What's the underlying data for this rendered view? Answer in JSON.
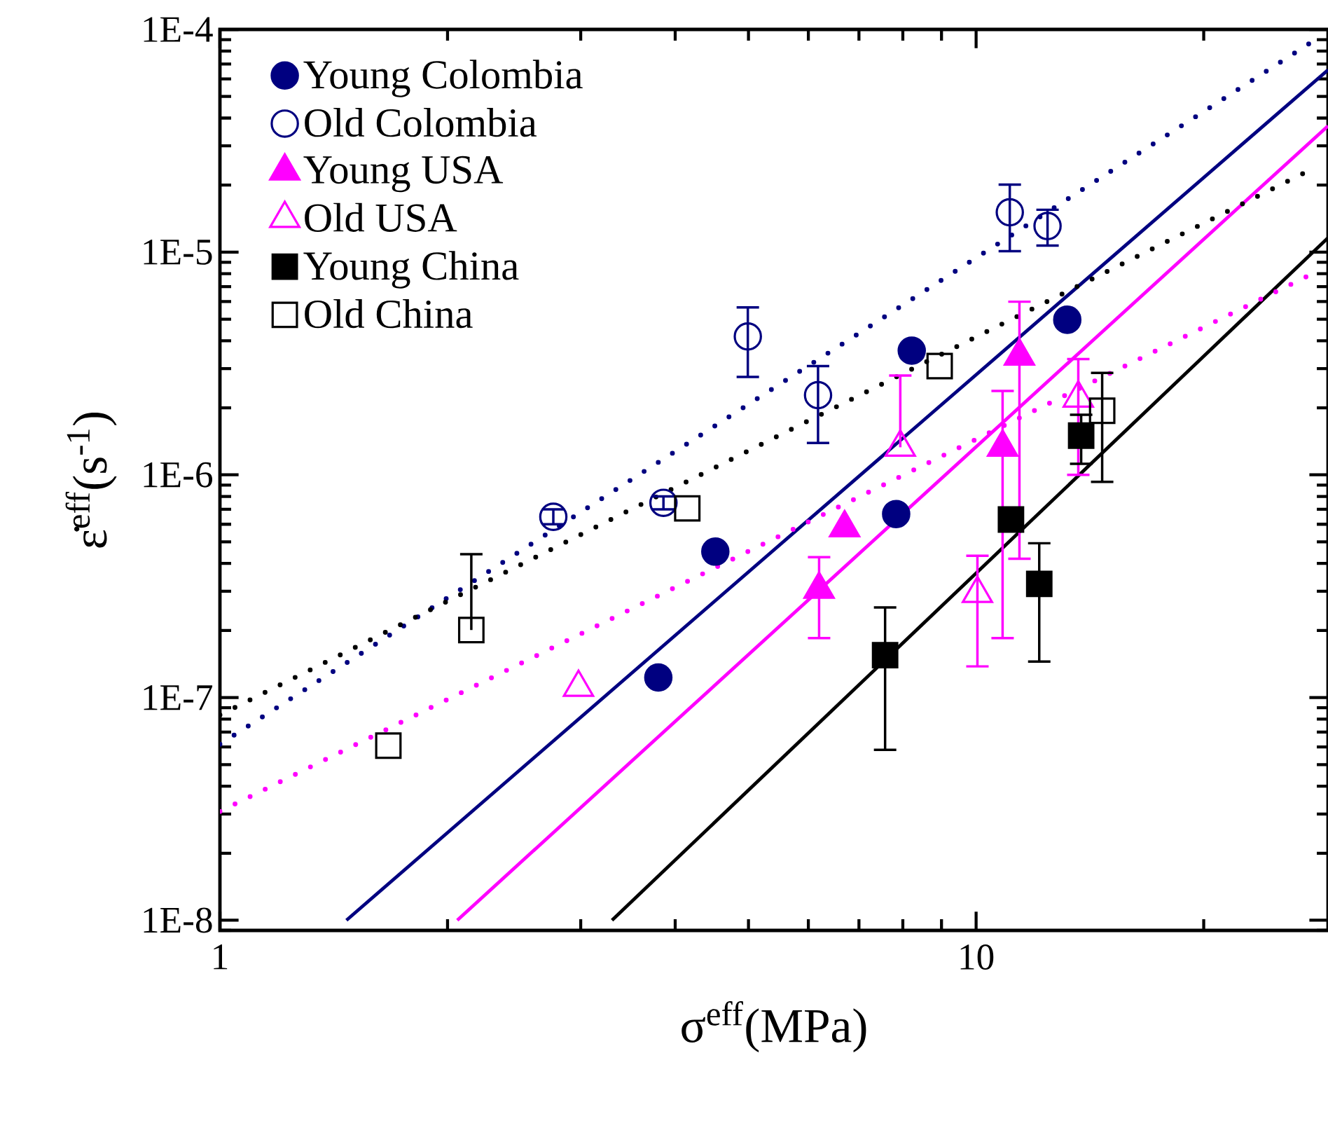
{
  "chart_data": {
    "type": "scatter",
    "xlabel": "σ$^{eff}$(MPa)",
    "ylabel": "ε̇$^{eff}$(s$^{-1}$)",
    "log": "xy",
    "legend": "top left",
    "xlim": [
      1,
      29.2
    ],
    "ylim": [
      9e-09,
      0.0001
    ],
    "xticks": [
      1,
      10
    ],
    "yticks": [
      {
        "value": 1e-08,
        "label": "1E-8"
      },
      {
        "value": 1e-07,
        "label": "1E-7"
      },
      {
        "value": 1e-06,
        "label": "1E-6"
      },
      {
        "value": 1e-05,
        "label": "1E-5"
      },
      {
        "value": 0.0001,
        "label": "1E-4"
      }
    ],
    "series": [
      {
        "name": "Young Colombia",
        "color": "#000080",
        "marker": "circle",
        "x": [
          3.8,
          4.52,
          7.84,
          8.22,
          13.2
        ],
        "values": [
          1.23e-07,
          4.52e-07,
          6.67e-07,
          3.61e-06,
          4.97e-06
        ]
      },
      {
        "name": "Old Colombia",
        "color": "#000080",
        "marker": "circle-open",
        "x": [
          2.76,
          3.86,
          4.99,
          6.18,
          11.08,
          12.43
        ],
        "values": [
          6.48e-07,
          7.49e-07,
          4.18e-06,
          2.28e-06,
          1.51e-05,
          1.31e-05
        ],
        "errors": [
          [
            6e-07,
            7e-07
          ],
          [
            7e-07,
            8e-07
          ],
          [
            2.75e-06,
            5.65e-06
          ],
          [
            1.39e-06,
            3.08e-06
          ],
          [
            1.01e-05,
            2.01e-05
          ],
          [
            1.07e-05,
            1.55e-05
          ]
        ]
      },
      {
        "name": "Young USA",
        "color": "#ff00ff",
        "marker": "triangle",
        "x": [
          6.7,
          6.2,
          10.84,
          11.41
        ],
        "values": [
          5.78e-07,
          3.06e-07,
          1.33e-06,
          3.41e-06
        ],
        "errors": [
          null,
          [
            1.85e-07,
            4.27e-07
          ],
          [
            1.85e-07,
            2.38e-06
          ],
          [
            4.2e-07,
            5.99e-06
          ]
        ]
      },
      {
        "name": "Old USA",
        "color": "#ff00ff",
        "marker": "triangle-open",
        "x": [
          2.98,
          7.94,
          10.04,
          13.65
        ],
        "values": [
          1.11e-07,
          1.33e-06,
          2.93e-07,
          2.21e-06
        ],
        "errors": [
          null,
          [
            1.33e-06,
            2.79e-06
          ],
          [
            1.38e-07,
            4.33e-07
          ],
          [
            1e-06,
            3.31e-06
          ]
        ]
      },
      {
        "name": "Young China",
        "color": "#000000",
        "marker": "square",
        "x": [
          7.58,
          11.12,
          12.12,
          13.77
        ],
        "values": [
          1.55e-07,
          6.3e-07,
          3.24e-07,
          1.5e-06
        ],
        "errors": [
          [
            5.82e-08,
            2.54e-07
          ],
          null,
          [
            1.45e-07,
            4.93e-07
          ],
          [
            1.12e-06,
            1.86e-06
          ]
        ]
      },
      {
        "name": "Old China",
        "color": "#000000",
        "marker": "square-open",
        "x": [
          1.67,
          2.15,
          4.15,
          8.95,
          14.68
        ],
        "values": [
          6.08e-08,
          2.01e-07,
          7.07e-07,
          3.08e-06,
          1.94e-06
        ],
        "errors": [
          null,
          [
            2.01e-07,
            4.4e-07
          ],
          null,
          null,
          [
            9.3e-07,
            2.87e-06
          ]
        ]
      },
      {
        "type": "line",
        "color": "#000080",
        "line_style": "solid",
        "marker": "none",
        "x": [
          1.47,
          29.2
        ],
        "values": [
          1e-08,
          6.58e-05
        ]
      },
      {
        "type": "line",
        "color": "#ff00ff",
        "line_style": "solid",
        "marker": "none",
        "x": [
          2.06,
          29.2
        ],
        "values": [
          1e-08,
          3.69e-05
        ]
      },
      {
        "type": "line",
        "color": "#000000",
        "line_style": "solid",
        "marker": "none",
        "x": [
          3.3,
          29.2
        ],
        "values": [
          1e-08,
          1.16e-05
        ]
      },
      {
        "type": "line",
        "color": "#000080",
        "line_style": "dotted",
        "marker": "none",
        "x": [
          1,
          27.6
        ],
        "values": [
          6.17e-08,
          8.65e-05
        ]
      },
      {
        "type": "line",
        "color": "#000000",
        "line_style": "dotted",
        "marker": "none",
        "x": [
          1,
          27.6
        ],
        "values": [
          8.35e-08,
          2.33e-05
        ]
      },
      {
        "type": "line",
        "color": "#ff00ff",
        "line_style": "dotted",
        "marker": "none",
        "x": [
          1,
          27.6
        ],
        "values": [
          3.08e-08,
          7.88e-06
        ]
      }
    ]
  }
}
